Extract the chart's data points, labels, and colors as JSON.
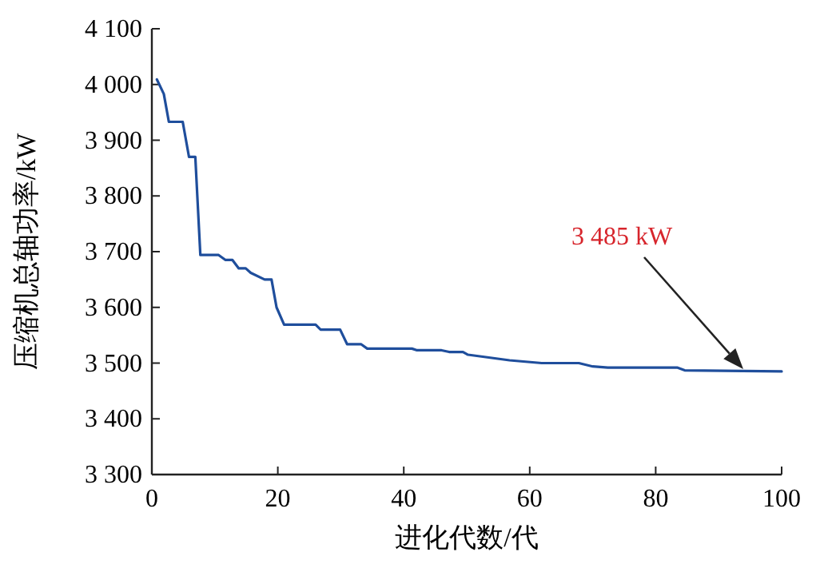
{
  "chart_data": {
    "type": "line",
    "xlabel": "进化代数/代",
    "ylabel": "压缩机总轴功率/kW",
    "xlim": [
      0,
      100
    ],
    "ylim": [
      3300,
      4100
    ],
    "xticks": [
      0,
      20,
      40,
      60,
      80,
      100
    ],
    "yticks": [
      {
        "value": 3300,
        "label": "3 300"
      },
      {
        "value": 3400,
        "label": "3 400"
      },
      {
        "value": 3500,
        "label": "3 500"
      },
      {
        "value": 3600,
        "label": "3 600"
      },
      {
        "value": 3700,
        "label": "3 700"
      },
      {
        "value": 3800,
        "label": "3 800"
      },
      {
        "value": 3900,
        "label": "3 900"
      },
      {
        "value": 4000,
        "label": "4 000"
      },
      {
        "value": 4100,
        "label": "4 100"
      }
    ],
    "grid": false,
    "series": [
      {
        "color": "#1f4e9c",
        "x": [
          0.8,
          1.9,
          2.7,
          4.9,
          5.9,
          6.9,
          7.7,
          10.6,
          11.7,
          12.8,
          13.8,
          14.9,
          15.7,
          17.9,
          19,
          19.8,
          21,
          26,
          26.8,
          29.9,
          31,
          33.2,
          34.2,
          41.3,
          42.1,
          46,
          47.2,
          49.4,
          50.2,
          56.8,
          61.9,
          67.8,
          70,
          72.4,
          83.4,
          84.6,
          100
        ],
        "values": [
          4009,
          3983,
          3933,
          3933,
          3870,
          3870,
          3694,
          3694,
          3685,
          3685,
          3670,
          3670,
          3662,
          3650,
          3650,
          3600,
          3569,
          3569,
          3560,
          3560,
          3534,
          3534,
          3526,
          3526,
          3523,
          3523,
          3520,
          3520,
          3515,
          3505,
          3500,
          3500,
          3494,
          3492,
          3492,
          3487,
          3485
        ]
      }
    ],
    "annotations": [
      "3 485 kW"
    ]
  }
}
